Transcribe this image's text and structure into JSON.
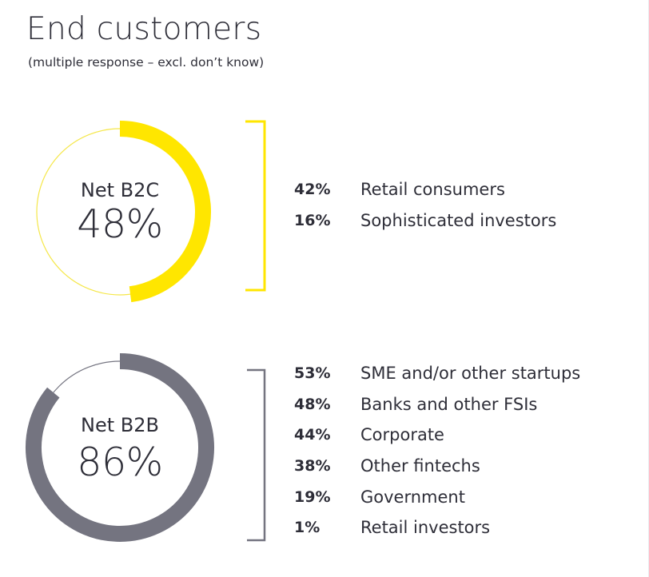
{
  "title": "End customers",
  "subtitle": "(multiple response – excl. don’t know)",
  "colors": {
    "b2c": "#ffe600",
    "b2c_track": "#f5e74a",
    "b2b": "#747480",
    "b2b_track": "#747480",
    "bracket_b2c": "#ffe600",
    "bracket_b2b": "#747480"
  },
  "chart_data": [
    {
      "type": "pie",
      "label": "Net B2C",
      "value_label": "48%",
      "value": 48,
      "breakdown": [
        {
          "pct_label": "42%",
          "name": "Retail consumers",
          "value": 42
        },
        {
          "pct_label": "16%",
          "name": "Sophisticated investors",
          "value": 16
        }
      ]
    },
    {
      "type": "pie",
      "label": "Net B2B",
      "value_label": "86%",
      "value": 86,
      "breakdown": [
        {
          "pct_label": "53%",
          "name": "SME and/or other startups",
          "value": 53
        },
        {
          "pct_label": "48%",
          "name": "Banks and other FSIs",
          "value": 48
        },
        {
          "pct_label": "44%",
          "name": "Corporate",
          "value": 44
        },
        {
          "pct_label": "38%",
          "name": "Other fintechs",
          "value": 38
        },
        {
          "pct_label": "19%",
          "name": "Government",
          "value": 19
        },
        {
          "pct_label": "1%",
          "name": "Retail investors",
          "value": 1
        }
      ]
    }
  ]
}
